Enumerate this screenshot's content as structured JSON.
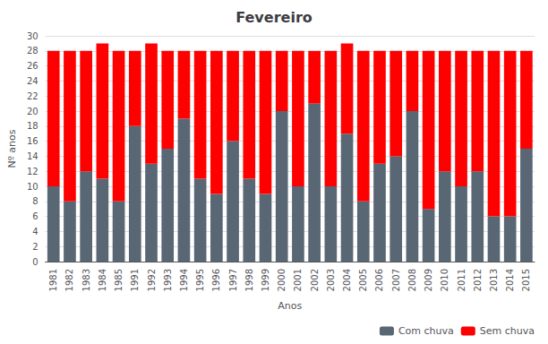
{
  "chart_data": {
    "type": "bar",
    "title": "Fevereiro",
    "xlabel": "Anos",
    "ylabel": "Nº anos",
    "categories": [
      "1981",
      "1982",
      "1983",
      "1984",
      "1985",
      "1991",
      "1992",
      "1993",
      "1994",
      "1995",
      "1996",
      "1997",
      "1998",
      "1999",
      "2000",
      "2001",
      "2002",
      "2003",
      "2004",
      "2005",
      "2006",
      "2007",
      "2008",
      "2009",
      "2010",
      "2011",
      "2012",
      "2013",
      "2014",
      "2015"
    ],
    "series": [
      {
        "name": "Com chuva",
        "color": "#596673",
        "values": [
          10,
          8,
          12,
          11,
          8,
          18,
          13,
          15,
          19,
          11,
          9,
          16,
          11,
          9,
          20,
          10,
          21,
          10,
          17,
          8,
          13,
          14,
          20,
          7,
          12,
          10,
          12,
          6,
          6,
          15
        ]
      },
      {
        "name": "Sem chuva",
        "color": "#ff0000",
        "values": [
          18,
          20,
          16,
          18,
          20,
          10,
          16,
          13,
          9,
          17,
          19,
          12,
          17,
          19,
          8,
          18,
          7,
          18,
          12,
          20,
          15,
          14,
          8,
          21,
          16,
          18,
          16,
          22,
          22,
          13
        ]
      }
    ],
    "stacked": true,
    "ylim": [
      0,
      30
    ],
    "yticks": [
      0,
      2,
      4,
      6,
      8,
      10,
      12,
      14,
      16,
      18,
      20,
      22,
      24,
      26,
      28,
      30
    ],
    "grid": true,
    "legend": "lower right"
  }
}
